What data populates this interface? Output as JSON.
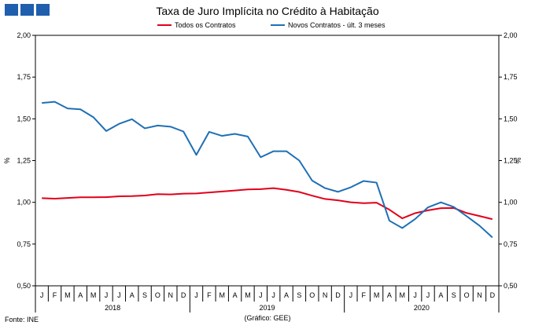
{
  "title": "Taxa de Juro Implícita no Crédito à Habitação",
  "source": "Fonte: INE",
  "note": "(Gráfico: GEE)",
  "chart_data": {
    "type": "line",
    "title": "Taxa de Juro Implícita no Crédito à Habitação",
    "ylabel": "%",
    "ylim": [
      0.5,
      2.0
    ],
    "yticks": [
      "0,50",
      "0,75",
      "1,00",
      "1,25",
      "1,50",
      "1,75",
      "2,00"
    ],
    "ytick_values": [
      0.5,
      0.75,
      1.0,
      1.25,
      1.5,
      1.75,
      2.0
    ],
    "month_labels": [
      "J",
      "F",
      "M",
      "A",
      "M",
      "J",
      "J",
      "A",
      "S",
      "O",
      "N",
      "D",
      "J",
      "F",
      "M",
      "A",
      "M",
      "J",
      "J",
      "A",
      "S",
      "O",
      "N",
      "D",
      "J",
      "F",
      "M",
      "A",
      "M",
      "J",
      "J",
      "A",
      "S",
      "O",
      "N",
      "D"
    ],
    "years": [
      "2018",
      "2019",
      "2020"
    ],
    "legend_position": "top",
    "series": [
      {
        "name": "Todos os Contratos",
        "color": "#e2001a",
        "values": [
          1.025,
          1.022,
          1.026,
          1.03,
          1.03,
          1.031,
          1.036,
          1.037,
          1.041,
          1.049,
          1.047,
          1.052,
          1.053,
          1.059,
          1.065,
          1.071,
          1.077,
          1.079,
          1.085,
          1.075,
          1.062,
          1.04,
          1.02,
          1.012,
          1.0,
          0.995,
          0.998,
          0.956,
          0.904,
          0.935,
          0.952,
          0.965,
          0.966,
          0.936,
          0.918,
          0.899
        ]
      },
      {
        "name": "Novos Contratos - últ. 3 meses",
        "color": "#1f6fb5",
        "values": [
          1.595,
          1.602,
          1.562,
          1.557,
          1.51,
          1.427,
          1.47,
          1.498,
          1.443,
          1.46,
          1.453,
          1.424,
          1.284,
          1.422,
          1.398,
          1.41,
          1.394,
          1.27,
          1.306,
          1.306,
          1.25,
          1.13,
          1.085,
          1.063,
          1.09,
          1.128,
          1.118,
          0.89,
          0.846,
          0.9,
          0.97,
          1.0,
          0.972,
          0.917,
          0.86,
          0.79
        ]
      }
    ]
  }
}
